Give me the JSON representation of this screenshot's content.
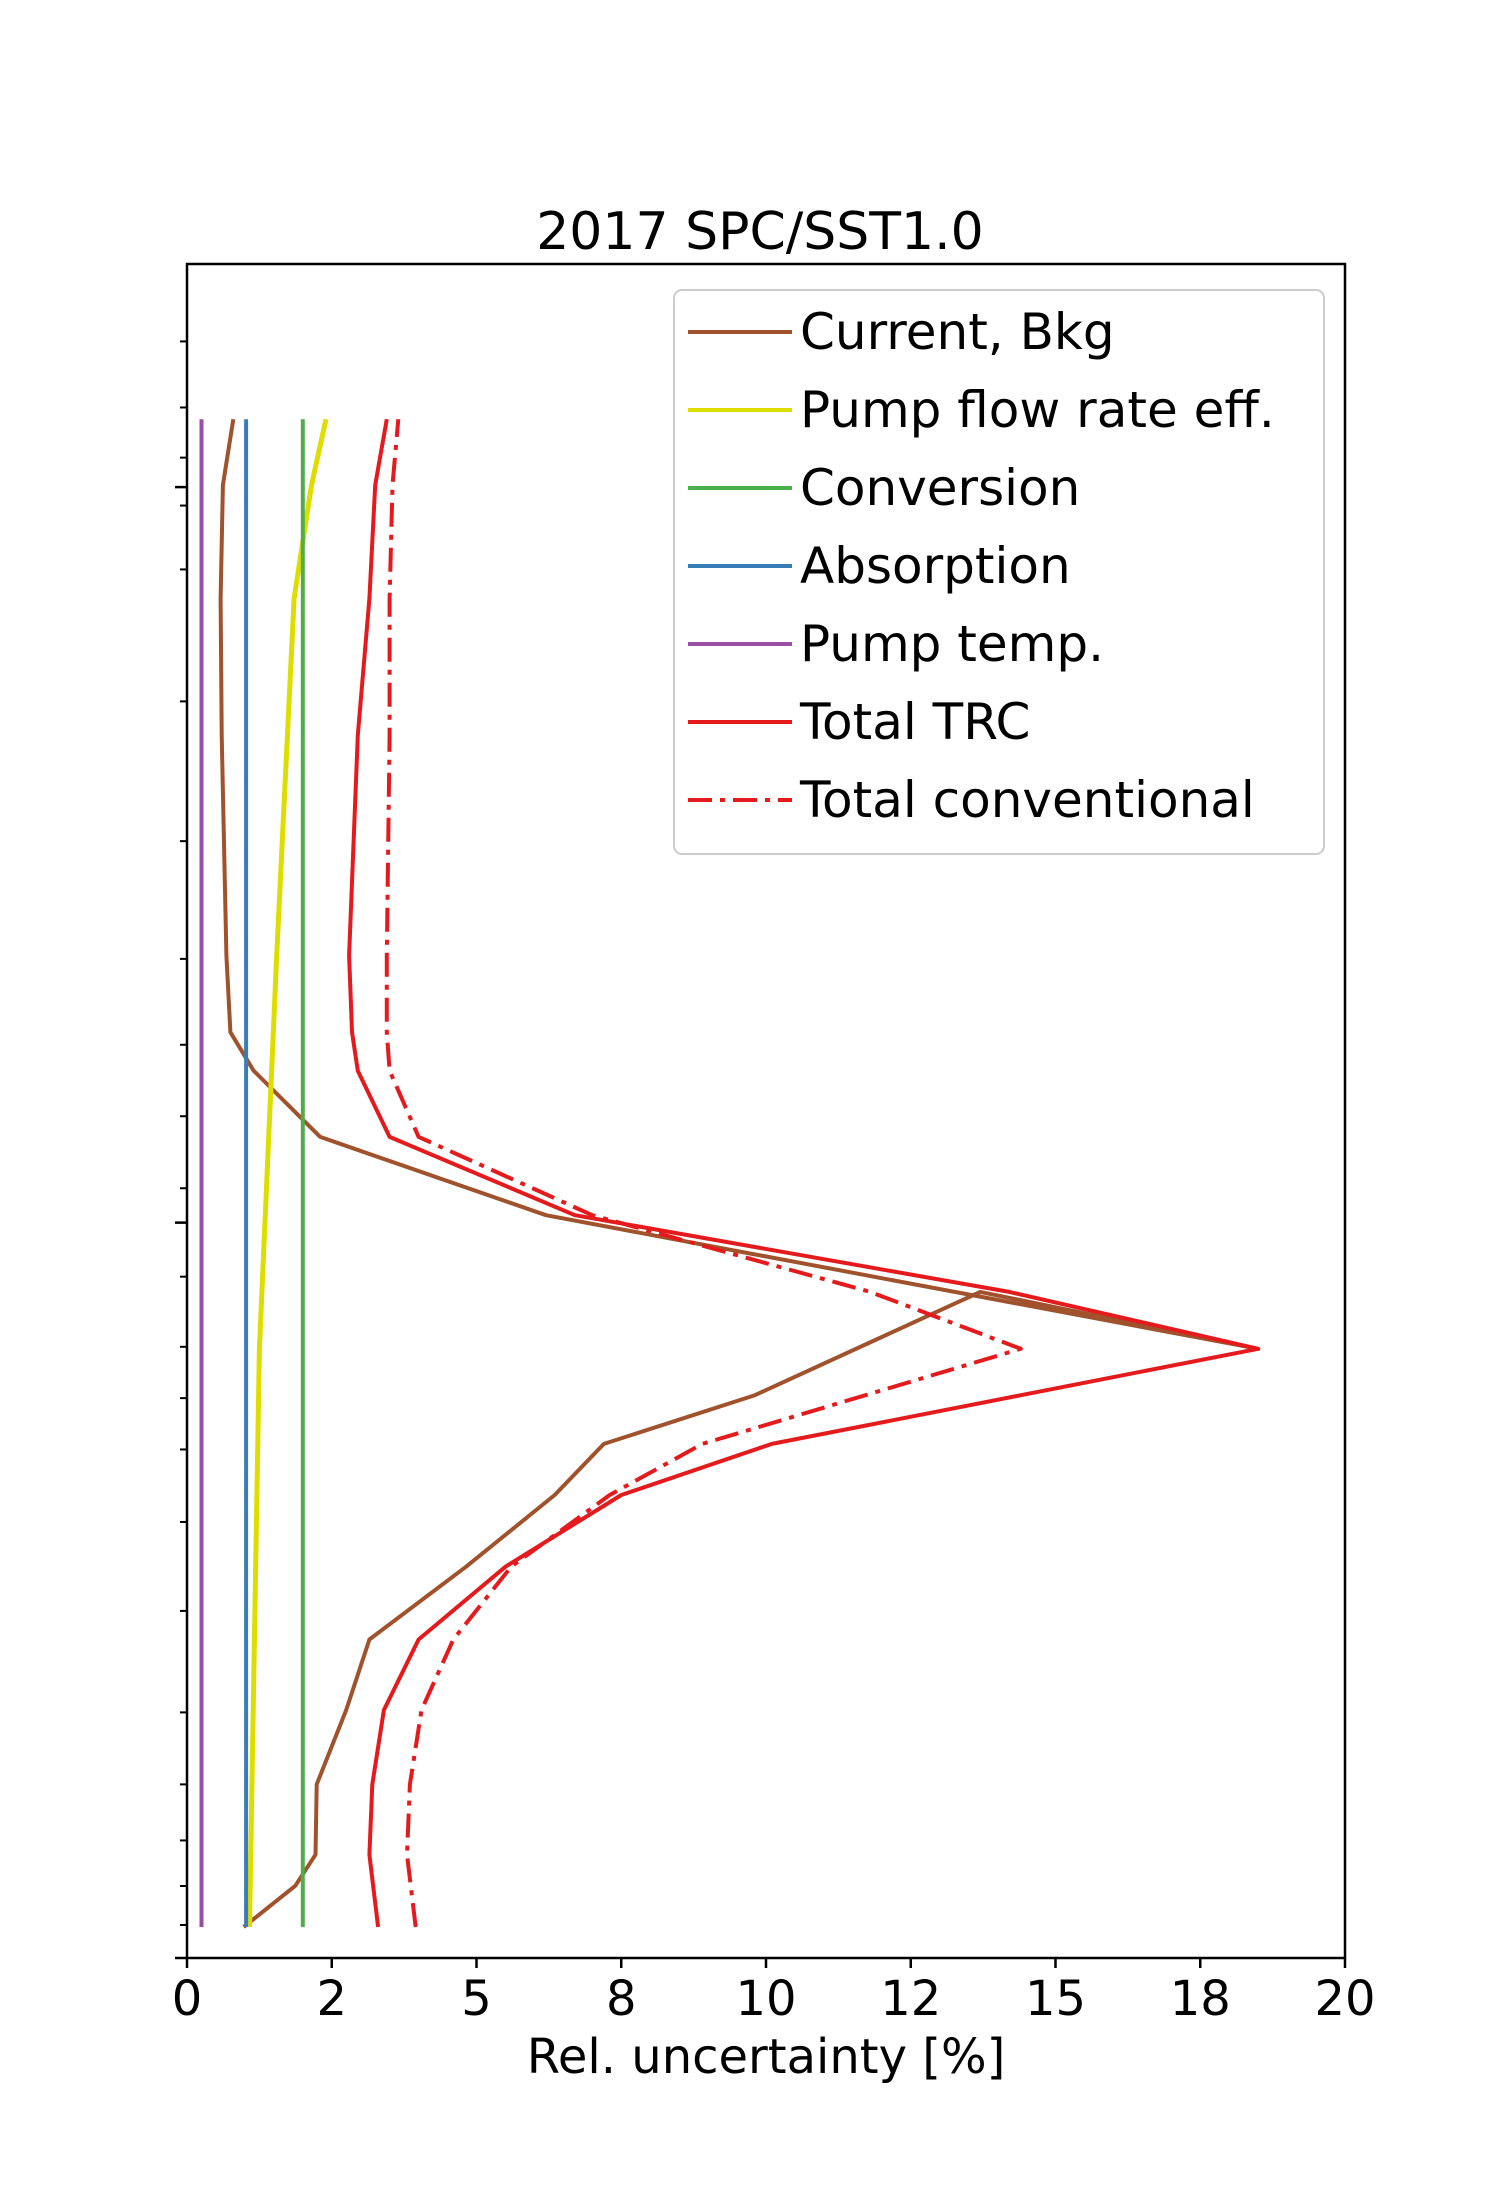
{
  "chart_data": {
    "type": "line",
    "title": "2017 SPC/SST1.0",
    "xlabel": "Rel. uncertainty [%]",
    "ylabel": "",
    "xlim": [
      0,
      20
    ],
    "ylim": [
      0,
      1
    ],
    "x_ticks": [
      {
        "value": 0,
        "label": "0"
      },
      {
        "value": 2.5,
        "label": "2"
      },
      {
        "value": 5,
        "label": "5"
      },
      {
        "value": 7.5,
        "label": "8"
      },
      {
        "value": 10,
        "label": "10"
      },
      {
        "value": 12.5,
        "label": "12"
      },
      {
        "value": 15,
        "label": "15"
      },
      {
        "value": 17.5,
        "label": "18"
      },
      {
        "value": 20,
        "label": "20"
      }
    ],
    "y_major_ticks": [
      0.0,
      0.4341,
      0.8683
    ],
    "y_minor_ticks": [
      0.0195,
      0.0425,
      0.0694,
      0.1025,
      0.145,
      0.2049,
      0.2574,
      0.3002,
      0.3305,
      0.3608,
      0.4022,
      0.4544,
      0.4969,
      0.5391,
      0.5898,
      0.6593,
      0.7418,
      0.8197,
      0.8574,
      0.8857,
      0.9153,
      0.9543
    ],
    "grid": false,
    "legend_position": "top-right",
    "series": [
      {
        "name": "Current, Bkg",
        "color": "#a0522d",
        "style": "solid",
        "points": [
          [
            0.98,
            0.0183
          ],
          [
            1.87,
            0.0426
          ],
          [
            2.22,
            0.061
          ],
          [
            2.24,
            0.1025
          ],
          [
            2.75,
            0.1464
          ],
          [
            3.15,
            0.188
          ],
          [
            4.82,
            0.231
          ],
          [
            6.35,
            0.2733
          ],
          [
            7.2,
            0.3035
          ],
          [
            9.8,
            0.3321
          ],
          [
            13.7,
            0.3932
          ],
          [
            18.5,
            0.3596
          ],
          [
            6.2,
            0.4385
          ],
          [
            2.3,
            0.4847
          ],
          [
            1.15,
            0.5238
          ],
          [
            0.75,
            0.5465
          ],
          [
            0.68,
            0.5918
          ],
          [
            0.6,
            0.7218
          ],
          [
            0.58,
            0.8025
          ],
          [
            0.62,
            0.8695
          ],
          [
            0.8,
            0.9084
          ]
        ]
      },
      {
        "name": "Pump flow rate eff.",
        "color": "#dddd00",
        "style": "solid",
        "points": [
          [
            1.08,
            0.0183
          ],
          [
            1.25,
            0.3596
          ],
          [
            1.55,
            0.5918
          ],
          [
            1.85,
            0.8025
          ],
          [
            2.15,
            0.8695
          ],
          [
            2.4,
            0.9084
          ]
        ]
      },
      {
        "name": "Conversion",
        "color": "#4daf4a",
        "style": "solid",
        "points": [
          [
            2.0,
            0.0183
          ],
          [
            2.0,
            0.9084
          ]
        ]
      },
      {
        "name": "Absorption",
        "color": "#377eb8",
        "style": "solid",
        "points": [
          [
            1.02,
            0.0183
          ],
          [
            1.02,
            0.9084
          ]
        ]
      },
      {
        "name": "Pump temp.",
        "color": "#984ea3",
        "style": "solid",
        "points": [
          [
            0.25,
            0.0183
          ],
          [
            0.25,
            0.9084
          ]
        ]
      },
      {
        "name": "Total TRC",
        "color": "#e41a1c",
        "style": "solid",
        "points": [
          [
            3.3,
            0.0183
          ],
          [
            3.15,
            0.061
          ],
          [
            3.2,
            0.1025
          ],
          [
            3.4,
            0.1464
          ],
          [
            4.0,
            0.188
          ],
          [
            5.5,
            0.231
          ],
          [
            7.5,
            0.2733
          ],
          [
            10.1,
            0.3035
          ],
          [
            18.5,
            0.3596
          ],
          [
            14.2,
            0.3932
          ],
          [
            6.7,
            0.4385
          ],
          [
            3.5,
            0.4847
          ],
          [
            2.95,
            0.5238
          ],
          [
            2.85,
            0.5465
          ],
          [
            2.8,
            0.5918
          ],
          [
            2.95,
            0.7218
          ],
          [
            3.15,
            0.8025
          ],
          [
            3.25,
            0.8695
          ],
          [
            3.45,
            0.9084
          ]
        ]
      },
      {
        "name": "Total conventional",
        "color": "#e41a1c",
        "style": "dashdot",
        "points": [
          [
            3.95,
            0.0183
          ],
          [
            3.8,
            0.061
          ],
          [
            3.85,
            0.1025
          ],
          [
            4.05,
            0.1464
          ],
          [
            4.6,
            0.188
          ],
          [
            5.6,
            0.231
          ],
          [
            7.3,
            0.2733
          ],
          [
            8.9,
            0.3035
          ],
          [
            14.4,
            0.3596
          ],
          [
            11.8,
            0.3932
          ],
          [
            7.0,
            0.4385
          ],
          [
            4.0,
            0.4847
          ],
          [
            3.5,
            0.5238
          ],
          [
            3.45,
            0.5465
          ],
          [
            3.45,
            0.5918
          ],
          [
            3.5,
            0.7218
          ],
          [
            3.5,
            0.8025
          ],
          [
            3.55,
            0.8695
          ],
          [
            3.65,
            0.9084
          ]
        ]
      }
    ]
  }
}
